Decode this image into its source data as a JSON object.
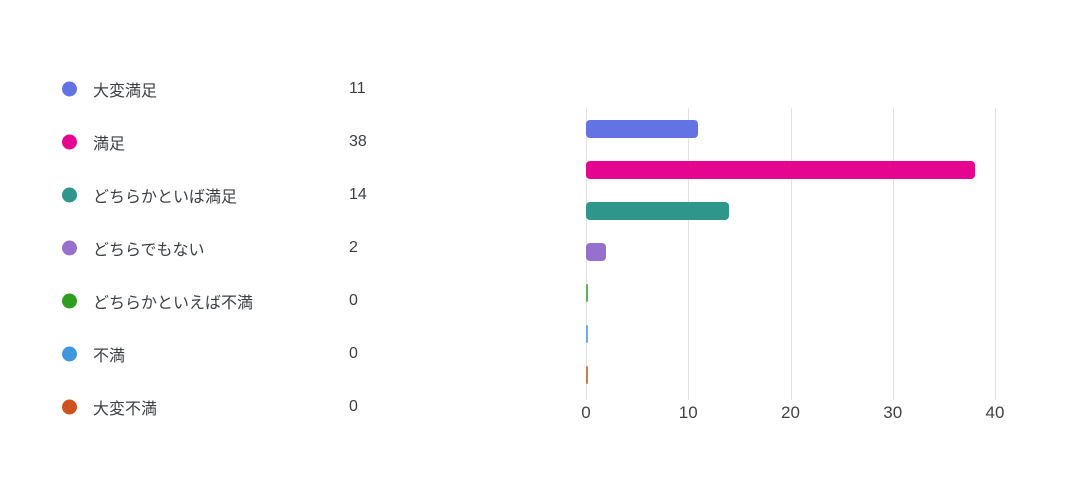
{
  "legend": {
    "items": [
      {
        "label": "大変満足",
        "count": "11",
        "color": "#6373e3"
      },
      {
        "label": "満足",
        "count": "38",
        "color": "#e6058f"
      },
      {
        "label": "どちらかといば満足",
        "count": "14",
        "color": "#2e968b"
      },
      {
        "label": "どちらでもない",
        "count": "2",
        "color": "#9571cd"
      },
      {
        "label": "どちらかといえば不満",
        "count": "0",
        "color": "#2f9e1f"
      },
      {
        "label": "不満",
        "count": "0",
        "color": "#4197dc"
      },
      {
        "label": "大変不満",
        "count": "0",
        "color": "#ce521d"
      }
    ]
  },
  "chart_data": {
    "type": "bar",
    "orientation": "horizontal",
    "title": "",
    "categories": [
      "大変満足",
      "満足",
      "どちらかといば満足",
      "どちらでもない",
      "どちらかといえば不満",
      "不満",
      "大変不満"
    ],
    "values": [
      11,
      38,
      14,
      2,
      0,
      0,
      0
    ],
    "colors": [
      "#6373e3",
      "#e6058f",
      "#2e968b",
      "#9571cd",
      "#2f9e1f",
      "#4197dc",
      "#ce521d"
    ],
    "x_ticks": [
      0,
      10,
      20,
      30,
      40
    ],
    "xlim": [
      0,
      40
    ],
    "grid": true,
    "gridline_color": "#e2e2e2",
    "legend_position": "left"
  }
}
